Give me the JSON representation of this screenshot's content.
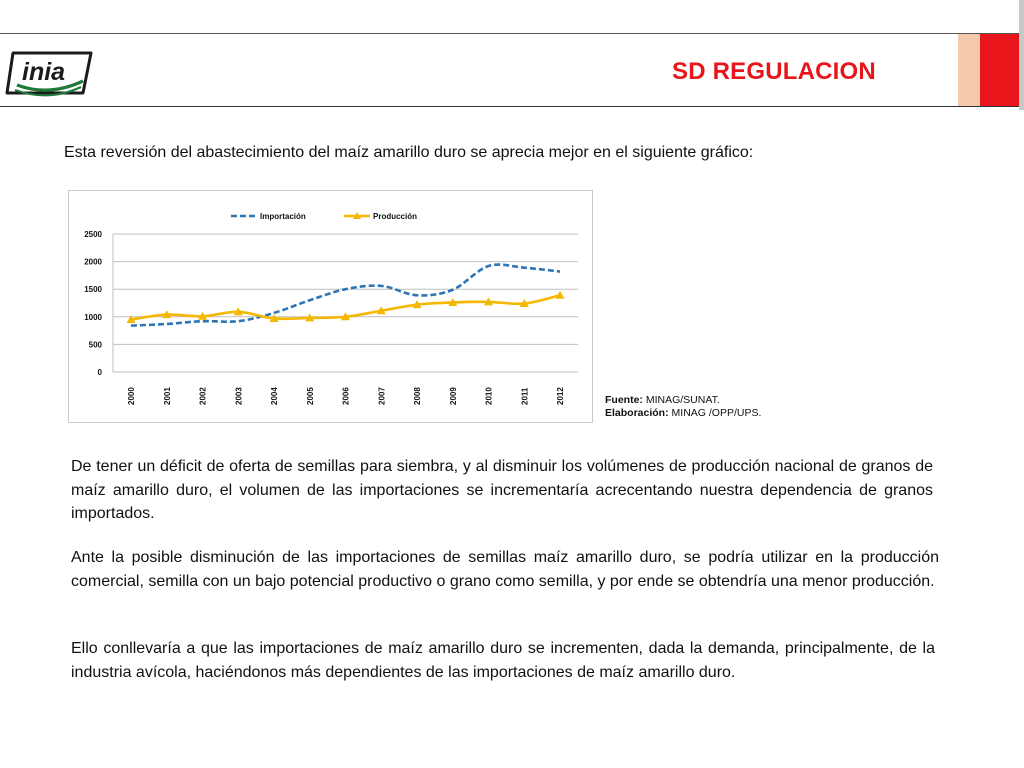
{
  "header": {
    "title": "SD REGULACION",
    "logo_text": "inia",
    "colors": {
      "title": "#e8161b",
      "accent_red": "#e8161b",
      "accent_peach": "#f6c9ad",
      "logo_green": "#1f7a3a"
    }
  },
  "intro_text": "Esta reversión del abastecimiento del maíz amarillo duro se aprecia mejor en el siguiente gráfico:",
  "source": {
    "fuente_label": "Fuente:",
    "fuente_value": " MINAG/SUNAT.",
    "elaboracion_label": "Elaboración:",
    "elaboracion_value": " MINAG /OPP/UPS."
  },
  "paragraphs": [
    "De tener un déficit de oferta de semillas para siembra, y al disminuir los volúmenes de producción nacional de granos de maíz amarillo duro, el volumen de las importaciones se incrementaría acrecentando nuestra dependencia de granos importados.",
    "Ante la posible disminución de las importaciones de semillas maíz amarillo duro, se podría utilizar en la producción comercial, semilla con un bajo potencial productivo o grano como semilla, y por ende se obtendría una menor producción.",
    "Ello conllevaría a que las importaciones de maíz amarillo duro se incrementen, dada la demanda, principalmente, de la industria avícola, haciéndonos más dependientes de las importaciones de maíz amarillo duro."
  ],
  "chart_data": {
    "type": "line",
    "title": "",
    "xlabel": "",
    "ylabel": "",
    "categories": [
      "2000",
      "2001",
      "2002",
      "2003",
      "2004",
      "2005",
      "2006",
      "2007",
      "2008",
      "2009",
      "2010",
      "2011",
      "2012"
    ],
    "ylim": [
      0,
      2500
    ],
    "yticks": [
      "0",
      "500",
      "1000",
      "1500",
      "2000",
      "2500"
    ],
    "grid": true,
    "legend_position": "top",
    "series": [
      {
        "name": "Importación",
        "color": "#2e75b6",
        "style": "dashed",
        "values": [
          840,
          870,
          920,
          920,
          1070,
          1300,
          1500,
          1560,
          1390,
          1490,
          1920,
          1890,
          1820
        ]
      },
      {
        "name": "Producción",
        "color": "#f5b800",
        "style": "solid-triangle",
        "values": [
          950,
          1040,
          1010,
          1090,
          970,
          980,
          1000,
          1110,
          1220,
          1260,
          1270,
          1240,
          1390
        ]
      }
    ]
  }
}
